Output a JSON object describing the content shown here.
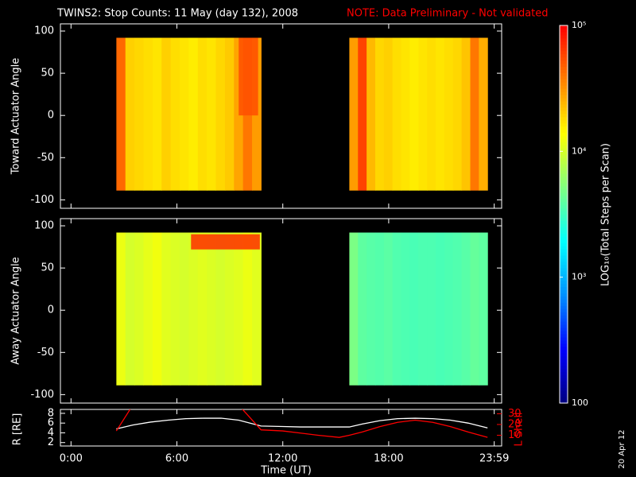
{
  "stamp": "20 Apr 12",
  "chart_data": [
    {
      "type": "heatmap",
      "title": "TWINS2: Stop Counts: 11 May (day 132), 2008",
      "note": "NOTE: Data Preliminary - Not validated",
      "ylabel": "Toward Actuator Angle",
      "ylim": [
        -110,
        108.5
      ],
      "yticks": [
        -100,
        -50,
        0,
        50,
        100
      ],
      "angle_extent": [
        -89,
        92
      ],
      "blocks": [
        {
          "xlim": [
            2.57,
            10.77
          ],
          "values": [
            45000,
            20000,
            19000,
            18000,
            17000,
            20000,
            18000,
            17000,
            16000,
            18000,
            17000,
            19000,
            21000,
            28000,
            40000,
            30000
          ]
        },
        {
          "xlim": [
            15.77,
            23.6
          ],
          "values": [
            30000,
            60000,
            24000,
            19000,
            20000,
            18000,
            17000,
            16000,
            17000,
            18000,
            17000,
            18000,
            19000,
            22000,
            40000,
            26000
          ]
        }
      ],
      "patches": [
        {
          "x": [
            9.5,
            10.6
          ],
          "angle": [
            0,
            92
          ],
          "value": 55000
        }
      ]
    },
    {
      "type": "heatmap",
      "ylabel": "Away Actuator Angle",
      "ylim": [
        -110,
        108.5
      ],
      "yticks": [
        -100,
        -50,
        0,
        50,
        100
      ],
      "angle_extent": [
        -89,
        92
      ],
      "blocks": [
        {
          "xlim": [
            2.57,
            10.77
          ],
          "values": [
            12000,
            10000,
            10500,
            11500,
            12500,
            11000,
            10500,
            10000,
            10500,
            11000,
            10500,
            10000,
            10500,
            11000,
            12000,
            11000
          ]
        },
        {
          "xlim": [
            15.77,
            23.6
          ],
          "values": [
            5000,
            4000,
            3800,
            3700,
            3900,
            3600,
            3500,
            3400,
            3500,
            3500,
            3400,
            3500,
            3600,
            3800,
            4200,
            4000
          ]
        }
      ],
      "patches": [
        {
          "x": [
            6.8,
            10.7
          ],
          "angle": [
            72,
            90
          ],
          "value": 70000
        }
      ]
    },
    {
      "type": "line",
      "ylabel": "R [RE]",
      "y2label": "L Shell",
      "xlabel": "Time (UT)",
      "xlim": [
        -0.6,
        24.4
      ],
      "xticks": [
        {
          "value": 0,
          "label": "0:00"
        },
        {
          "value": 6,
          "label": "6:00"
        },
        {
          "value": 12,
          "label": "12:00"
        },
        {
          "value": 18,
          "label": "18:00"
        },
        {
          "value": 23.98,
          "label": "23:59"
        }
      ],
      "ylim": [
        1.3,
        8.8
      ],
      "yticks": [
        2,
        4,
        6,
        8
      ],
      "y2lim": [
        0,
        34
      ],
      "y2ticks": [
        10,
        20,
        30
      ],
      "x": [
        2.57,
        3.5,
        4.5,
        5.5,
        6.5,
        7.5,
        8.5,
        9.5,
        10.77,
        12,
        13,
        14,
        15.2,
        15.77,
        16.5,
        17.5,
        18.5,
        19.5,
        20.5,
        21.5,
        22.5,
        23.6
      ],
      "series": [
        {
          "color": "#ffffff",
          "values": [
            4.8,
            5.6,
            6.2,
            6.6,
            6.9,
            7.0,
            7.0,
            6.6,
            5.4,
            5.3,
            5.2,
            5.2,
            5.2,
            5.2,
            5.8,
            6.5,
            6.9,
            7.0,
            6.9,
            6.6,
            6.0,
            5.0
          ]
        },
        {
          "color": "#ff0000",
          "axis": "y2",
          "values": [
            14,
            38,
            null,
            null,
            null,
            null,
            null,
            38,
            15,
            14,
            12,
            10,
            8,
            10,
            13,
            18,
            22,
            24,
            22,
            18,
            13,
            8
          ]
        }
      ]
    },
    {
      "type": "colorbar",
      "label": "LOG₁₀(Total Steps per Scan)",
      "lim": [
        100,
        100000
      ],
      "log": true,
      "ticks": [
        100,
        {
          "value": 1000,
          "label": "10³"
        },
        {
          "value": 10000,
          "label": "10⁴"
        },
        {
          "value": 100000,
          "label": "10⁵"
        }
      ],
      "colormap": [
        "#000080",
        "#0000ff",
        "#0090ff",
        "#00ffff",
        "#80ff80",
        "#ffff00",
        "#ff8000",
        "#ff0000"
      ]
    }
  ]
}
